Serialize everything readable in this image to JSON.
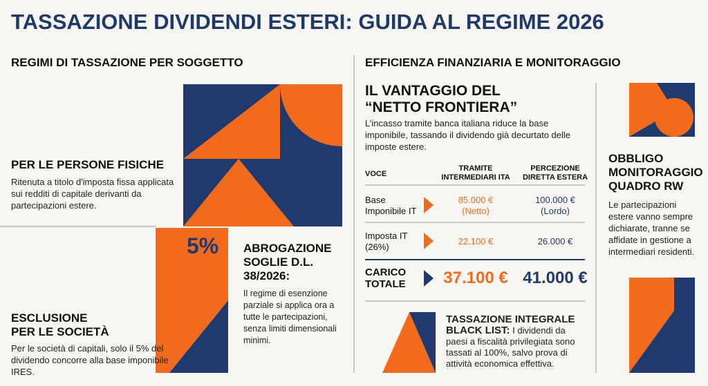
{
  "header": {
    "title": "TASSAZIONE DIVIDENDI ESTERI: GUIDA AL REGIME 2026"
  },
  "left": {
    "heading": "REGIMI DI TASSAZIONE PER SOGGETTO",
    "persons": {
      "title": "PER LE PERSONE FISICHE",
      "text": "Ritenuta a titolo d'imposta fissa applicata sui redditi di capitale derivanti da partecipazioni estere."
    },
    "percent": "5%",
    "abrogation": {
      "title": "ABROGAZIONE\nSOGLIE D.L.\n38/2026:",
      "text": "Il regime di esenzione parziale si applica ora a tutte le partecipazioni, senza limiti dimensionali minimi."
    },
    "companies": {
      "title": "ESCLUSIONE\nPER LE SOCIETÀ",
      "text": "Per le società di capitali, solo il 5% del dividendo concorre alla base imponibile IRES."
    }
  },
  "middle": {
    "heading": "EFFICIENZA FINANZIARIA E MONITORAGGIO",
    "advantage": {
      "title": "IL VANTAGGIO DEL\n“NETTO FRONTIERA”",
      "text": "L’incasso tramite banca italiana riduce la base imponibile, tassando il dividendo già decurtato delle imposte estere."
    },
    "table": {
      "columns": [
        "VOCE",
        "TRAMITE\nINTERMEDIARI ITA",
        "PERCEZIONE\nDIRETTA ESTERA"
      ],
      "rows": [
        [
          "Base\nImponibile IT",
          "85.000 €\n(Netto)",
          "100.000 €\n(Lordo)"
        ],
        [
          "Imposta IT\n(26%)",
          "22.100 €",
          "26.000 €"
        ],
        [
          "CARICO\nTOTALE",
          "37.100 €",
          "41.000 €"
        ]
      ]
    },
    "blacklist": {
      "title": "TASSAZIONE INTEGRALE BLACK LIST:",
      "text": " I dividendi da paesi a fiscalità privilegiata sono tassati al 100%, salvo prova di attività economica effettiva."
    }
  },
  "right": {
    "title": "OBBLIGO\nMONITORAGGIO\nQUADRO RW",
    "text": "Le partecipazioni estere vanno sempre dichiarate, tranne se affidate in gestione a intermediari residenti."
  }
}
